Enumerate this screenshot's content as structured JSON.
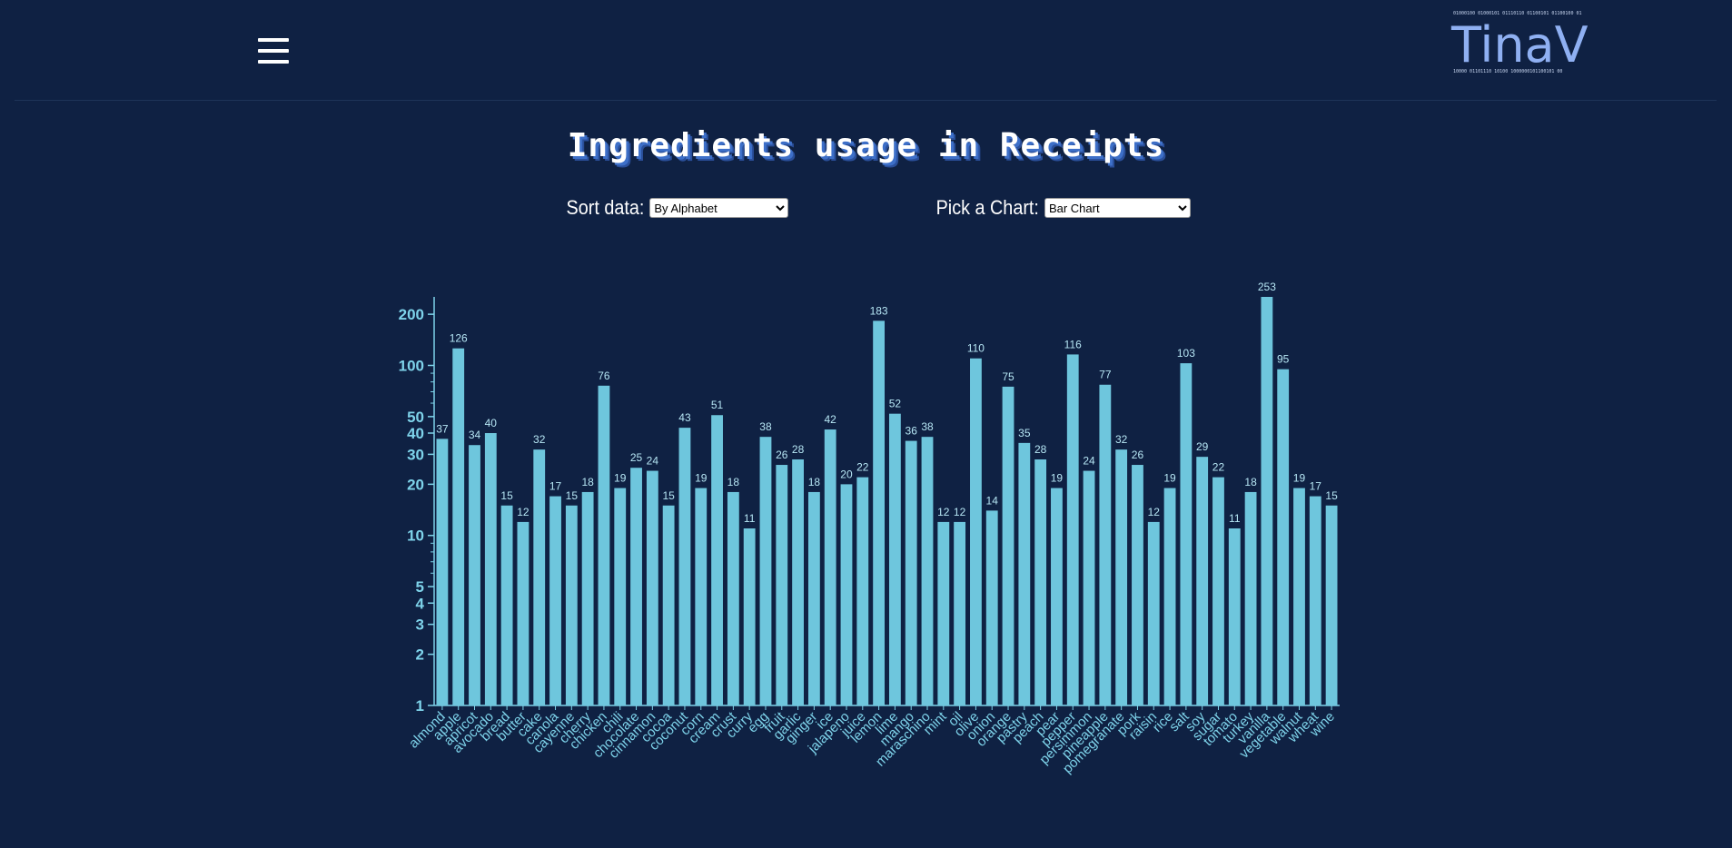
{
  "header": {
    "menu_icon": "hamburger-menu-icon",
    "logo_text": "TinaV"
  },
  "page": {
    "title": "Ingredients usage in Receipts"
  },
  "controls": {
    "sort_label": "Sort data:",
    "sort_selected": "By Alphabet",
    "chart_label": "Pick a Chart:",
    "chart_selected": "Bar Chart"
  },
  "colors": {
    "background": "#0f2143",
    "bar": "#6ec6dd",
    "axis": "#7ed3ea"
  },
  "chart_data": {
    "type": "bar",
    "title": "",
    "xlabel": "",
    "ylabel": "",
    "yscale": "log",
    "ylim": [
      1,
      253
    ],
    "yticks": [
      1,
      2,
      3,
      4,
      5,
      10,
      20,
      30,
      40,
      50,
      100,
      200
    ],
    "categories": [
      "almond",
      "apple",
      "apricot",
      "avocado",
      "bread",
      "butter",
      "cake",
      "canola",
      "cayenne",
      "cherry",
      "chicken",
      "chili",
      "chocolate",
      "cinnamon",
      "cocoa",
      "coconut",
      "corn",
      "cream",
      "crust",
      "curry",
      "egg",
      "fruit",
      "garlic",
      "ginger",
      "ice",
      "jalapeno",
      "juice",
      "lemon",
      "lime",
      "mango",
      "maraschino",
      "mint",
      "oil",
      "olive",
      "onion",
      "orange",
      "pastry",
      "peach",
      "pear",
      "pepper",
      "persimmon",
      "pineapple",
      "pomegranate",
      "pork",
      "raisin",
      "rice",
      "salt",
      "soy",
      "sugar",
      "tomato",
      "turkey",
      "vanilla",
      "vegetable",
      "walnut",
      "wheat",
      "wine"
    ],
    "values": [
      37,
      126,
      34,
      40,
      15,
      12,
      32,
      17,
      15,
      18,
      76,
      19,
      25,
      24,
      15,
      43,
      19,
      51,
      18,
      11,
      38,
      26,
      28,
      18,
      42,
      20,
      22,
      183,
      52,
      36,
      38,
      12,
      12,
      110,
      14,
      75,
      35,
      28,
      19,
      116,
      24,
      77,
      32,
      26,
      12,
      19,
      103,
      29,
      22,
      11,
      18,
      253,
      95,
      19,
      17,
      15
    ]
  }
}
